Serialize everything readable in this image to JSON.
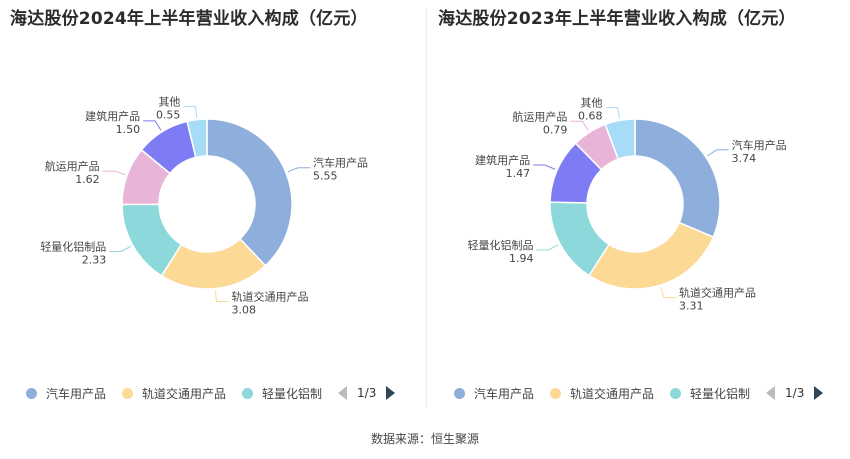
{
  "colors": [
    "#8eaedb",
    "#fdd996",
    "#8cd8da",
    "#e8b5d9",
    "#7d7cf4",
    "#a6dcf8"
  ],
  "legend": {
    "items": [
      "汽车用产品",
      "轨道交通用产品",
      "轻量化铝制"
    ],
    "pager": "1/3"
  },
  "source": "数据来源：恒生聚源",
  "chart_data": [
    {
      "type": "pie",
      "title": "海达股份2024年上半年营业收入构成（亿元）",
      "categories": [
        "汽车用产品",
        "轨道交通用产品",
        "轻量化铝制品",
        "航运用产品",
        "建筑用产品",
        "其他"
      ],
      "values": [
        5.55,
        3.08,
        2.33,
        1.62,
        1.5,
        0.55
      ],
      "value_labels": [
        "5.55",
        "3.08",
        "2.33",
        "1.62",
        "1.50",
        "0.55"
      ]
    },
    {
      "type": "pie",
      "title": "海达股份2023年上半年营业收入构成（亿元）",
      "categories": [
        "汽车用产品",
        "轨道交通用产品",
        "轻量化铝制品",
        "建筑用产品",
        "航运用产品",
        "其他"
      ],
      "values": [
        3.74,
        3.31,
        1.94,
        1.47,
        0.79,
        0.68
      ],
      "value_labels": [
        "3.74",
        "3.31",
        "1.94",
        "1.47",
        "0.79",
        "0.68"
      ]
    }
  ]
}
